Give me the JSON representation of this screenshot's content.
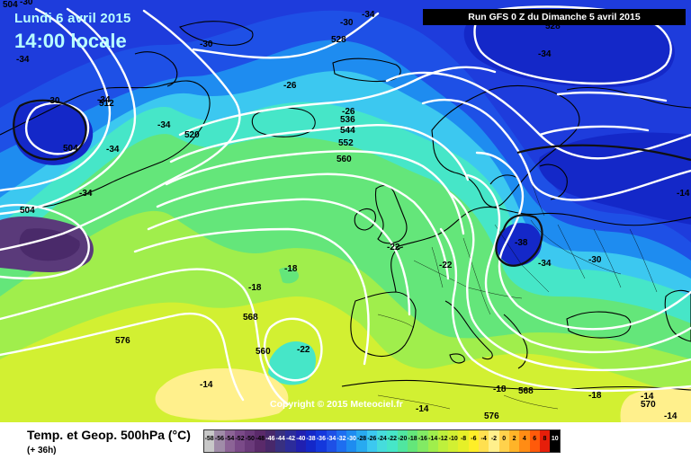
{
  "header": {
    "date": "Lundi 6 avril 2015",
    "time": "14:00 locale",
    "run": "Run GFS 0 Z du Dimanche 5 avril 2015"
  },
  "watermark": "Copyright © 2015 Meteociel.fr",
  "footer": {
    "title": "Temp. et Geop. 500hPa (°C)",
    "subtitle": "(+ 36h)"
  },
  "colors": {
    "deep_purple": "#5a3a7a",
    "dark_blue": "#1828c8",
    "blue": "#1e50e6",
    "light_blue": "#1e8cf0",
    "cyan": "#3cc8f0",
    "aqua": "#46e6c8",
    "green": "#64e67a",
    "lime": "#a0ee4c",
    "yellow_green": "#d2f032",
    "yellow": "#ffee28",
    "light_yellow": "#fff08c",
    "coastline": "#000000",
    "isohypse": "#ffffff"
  },
  "geopotential_labels": [
    {
      "value": "504"
    },
    {
      "value": "512"
    },
    {
      "value": "520"
    },
    {
      "value": "528"
    },
    {
      "value": "536"
    },
    {
      "value": "544"
    },
    {
      "value": "552"
    },
    {
      "value": "560"
    },
    {
      "value": "568"
    },
    {
      "value": "576"
    },
    {
      "value": "504"
    },
    {
      "value": "560"
    },
    {
      "value": "568"
    },
    {
      "value": "576"
    },
    {
      "value": "570"
    },
    {
      "value": "504"
    },
    {
      "value": "528"
    }
  ],
  "temperature_labels": [
    {
      "value": "-34"
    },
    {
      "value": "-30"
    },
    {
      "value": "-34"
    },
    {
      "value": "-30"
    },
    {
      "value": "-34"
    },
    {
      "value": "-34"
    },
    {
      "value": "-34"
    },
    {
      "value": "-34"
    },
    {
      "value": "-30"
    },
    {
      "value": "-26"
    },
    {
      "value": "-30"
    },
    {
      "value": "-34"
    },
    {
      "value": "-26"
    },
    {
      "value": "-22"
    },
    {
      "value": "-22"
    },
    {
      "value": "-38"
    },
    {
      "value": "-34"
    },
    {
      "value": "-30"
    },
    {
      "value": "-18"
    },
    {
      "value": "-18"
    },
    {
      "value": "-22"
    },
    {
      "value": "-14"
    },
    {
      "value": "-18"
    },
    {
      "value": "-18"
    },
    {
      "value": "-14"
    },
    {
      "value": "-14"
    },
    {
      "value": "-14"
    },
    {
      "value": "-14"
    }
  ],
  "color_scale": {
    "labels": [
      "-58",
      "-56",
      "-54",
      "-52",
      "-50",
      "-48",
      "-46",
      "-44",
      "-42",
      "-40",
      "-38",
      "-36",
      "-34",
      "-32",
      "-30",
      "-28",
      "-26",
      "-24",
      "-22",
      "-20",
      "-18",
      "-16",
      "-14",
      "-12",
      "-10",
      "-8",
      "-6",
      "-4",
      "-2",
      "0",
      "2",
      "4",
      "6",
      "8",
      "10"
    ],
    "colors": [
      "#c8c8c8",
      "#a08ca8",
      "#8c6496",
      "#7a4a88",
      "#6a3a7a",
      "#5a2a6a",
      "#48286a",
      "#383080",
      "#2c2c9a",
      "#2020b0",
      "#1428c8",
      "#1438dc",
      "#1e50e6",
      "#1e6ef0",
      "#1e8cf0",
      "#28aaf0",
      "#3cc8f0",
      "#46dcdc",
      "#46e6c8",
      "#50e6a0",
      "#64e67a",
      "#82ea64",
      "#a0ee4c",
      "#bef03c",
      "#d2f032",
      "#e6f028",
      "#ffee28",
      "#ffe050",
      "#fff08c",
      "#ffd24c",
      "#ffb428",
      "#ff8c14",
      "#ff5a0a",
      "#e61e0a",
      "#000000"
    ]
  }
}
